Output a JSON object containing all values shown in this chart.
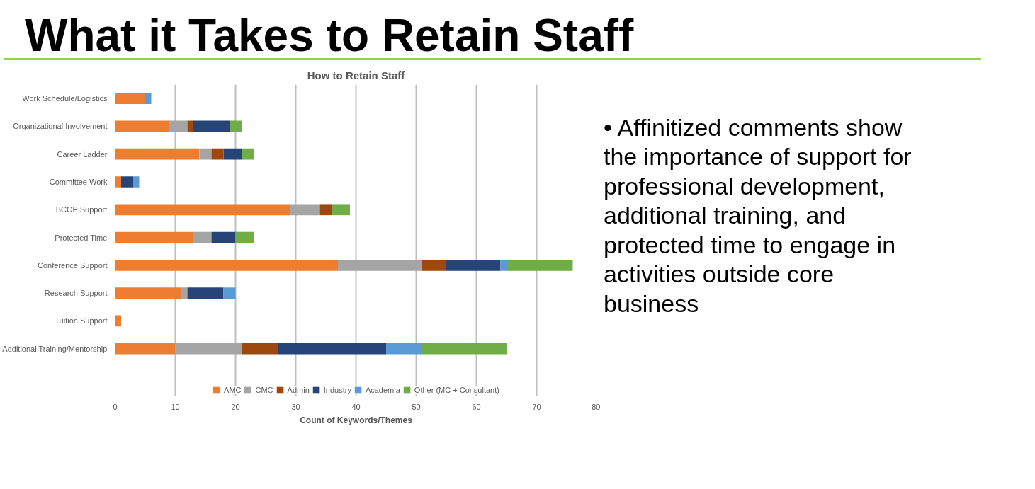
{
  "chart_data": {
    "type": "bar",
    "orientation": "horizontal",
    "stacked": true,
    "title": "How to Retain Staff",
    "xlabel": "Count of Keywords/Themes",
    "categories": [
      "Work Schedule/Logistics",
      "Organizational Involvement",
      "Career Ladder",
      "Committee Work",
      "BCOP Support",
      "Protected Time",
      "Conference Support",
      "Research Support",
      "Tuition Support",
      "Additional Training/Mentorship"
    ],
    "series": [
      {
        "name": "AMC",
        "color": "#ed7d31",
        "values": [
          5,
          9,
          14,
          1,
          29,
          13,
          37,
          11,
          1,
          10
        ]
      },
      {
        "name": "CMC",
        "color": "#a5a5a5",
        "values": [
          0,
          3,
          2,
          0,
          5,
          3,
          14,
          1,
          0,
          11
        ]
      },
      {
        "name": "Admin",
        "color": "#9e480e",
        "values": [
          0,
          1,
          2,
          0,
          2,
          0,
          4,
          0,
          0,
          6
        ]
      },
      {
        "name": "Industry",
        "color": "#264478",
        "values": [
          0,
          6,
          3,
          2,
          0,
          4,
          9,
          6,
          0,
          18
        ]
      },
      {
        "name": "Academia",
        "color": "#5b9bd5",
        "values": [
          1,
          0,
          0,
          1,
          0,
          0,
          1,
          2,
          0,
          6
        ]
      },
      {
        "name": "Other (MC + Consultant)",
        "color": "#70ad47",
        "values": [
          0,
          2,
          2,
          0,
          3,
          3,
          11,
          0,
          0,
          14
        ]
      }
    ],
    "xlim": [
      0,
      80
    ],
    "xticks": [
      0,
      10,
      20,
      30,
      40,
      50,
      60,
      70,
      80
    ],
    "grid": "x",
    "legend": "bottom",
    "annotations": [
      "What it Takes to Retain Staff",
      "• Affinitized comments show the importance of support for professional development, additional training, and protected time to engage in activities outside core business"
    ]
  }
}
